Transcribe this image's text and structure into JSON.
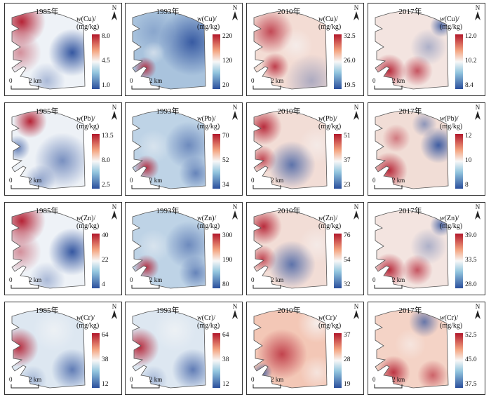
{
  "panels": [
    {
      "year": "1985年",
      "element": "Cu",
      "unit": "(mg/kg)",
      "ticks": [
        "8.0",
        "4.5",
        "1.0"
      ],
      "pattern": "a"
    },
    {
      "year": "1993年",
      "element": "Cu",
      "unit": "(mg/kg)",
      "ticks": [
        "220",
        "120",
        "20"
      ],
      "pattern": "b"
    },
    {
      "year": "2010年",
      "element": "Cu",
      "unit": "(mg/kg)",
      "ticks": [
        "32.5",
        "26.0",
        "19.5"
      ],
      "pattern": "c"
    },
    {
      "year": "2017年",
      "element": "Cu",
      "unit": "(mg/kg)",
      "ticks": [
        "12.0",
        "10.2",
        "8.4"
      ],
      "pattern": "d"
    },
    {
      "year": "1985年",
      "element": "Pb",
      "unit": "(mg/kg)",
      "ticks": [
        "13.5",
        "8.0",
        "2.5"
      ],
      "pattern": "e"
    },
    {
      "year": "1993年",
      "element": "Pb",
      "unit": "(mg/kg)",
      "ticks": [
        "70",
        "52",
        "34"
      ],
      "pattern": "f"
    },
    {
      "year": "2010年",
      "element": "Pb",
      "unit": "(mg/kg)",
      "ticks": [
        "51",
        "37",
        "23"
      ],
      "pattern": "g"
    },
    {
      "year": "2017年",
      "element": "Pb",
      "unit": "(mg/kg)",
      "ticks": [
        "12",
        "10",
        "8"
      ],
      "pattern": "h"
    },
    {
      "year": "1985年",
      "element": "Zn",
      "unit": "(mg/kg)",
      "ticks": [
        "40",
        "22",
        "4"
      ],
      "pattern": "a"
    },
    {
      "year": "1993年",
      "element": "Zn",
      "unit": "(mg/kg)",
      "ticks": [
        "300",
        "190",
        "80"
      ],
      "pattern": "f"
    },
    {
      "year": "2010年",
      "element": "Zn",
      "unit": "(mg/kg)",
      "ticks": [
        "76",
        "54",
        "32"
      ],
      "pattern": "g"
    },
    {
      "year": "2017年",
      "element": "Zn",
      "unit": "(mg/kg)",
      "ticks": [
        "39.0",
        "33.5",
        "28.0"
      ],
      "pattern": "d"
    },
    {
      "year": "1985年",
      "element": "Cr",
      "unit": "(mg/kg)",
      "ticks": [
        "64",
        "38",
        "12"
      ],
      "pattern": "i"
    },
    {
      "year": "1993年",
      "element": "Cr",
      "unit": "(mg/kg)",
      "ticks": [
        "64",
        "38",
        "12"
      ],
      "pattern": "i"
    },
    {
      "year": "2010年",
      "element": "Cr",
      "unit": "(mg/kg)",
      "ticks": [
        "37",
        "28",
        "19"
      ],
      "pattern": "j"
    },
    {
      "year": "2017年",
      "element": "Cr",
      "unit": "(mg/kg)",
      "ticks": [
        "52.5",
        "45.0",
        "37.5"
      ],
      "pattern": "k"
    }
  ],
  "north_label": "N",
  "scale": {
    "zero": "0",
    "distance": "2 km"
  },
  "colors": {
    "high": "#b2182b",
    "mid": "#f7f7f7",
    "low": "#2b4f9c"
  }
}
